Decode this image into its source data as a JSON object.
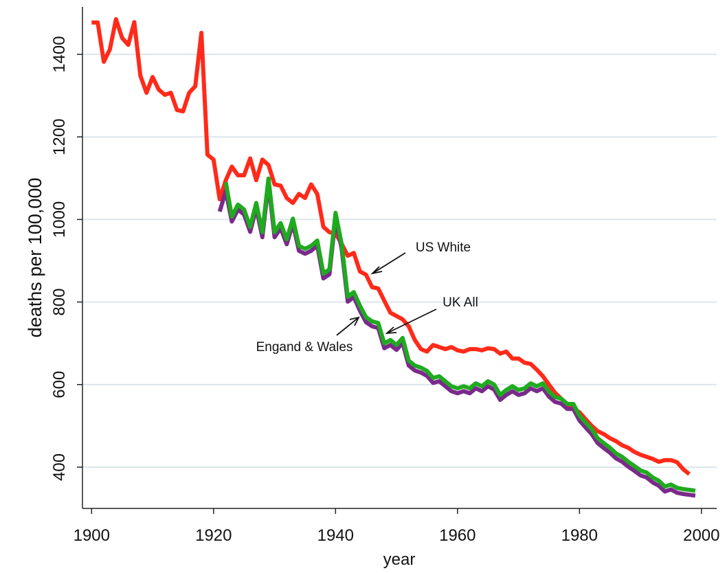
{
  "chart_data": {
    "type": "line",
    "x_label": "year",
    "y_label": "deaths per 100,000",
    "x": [
      1900,
      1901,
      1902,
      1903,
      1904,
      1905,
      1906,
      1907,
      1908,
      1909,
      1910,
      1911,
      1912,
      1913,
      1914,
      1915,
      1916,
      1917,
      1918,
      1919,
      1920,
      1921,
      1922,
      1923,
      1924,
      1925,
      1926,
      1927,
      1928,
      1929,
      1930,
      1931,
      1932,
      1933,
      1934,
      1935,
      1936,
      1937,
      1938,
      1939,
      1940,
      1941,
      1942,
      1943,
      1944,
      1945,
      1946,
      1947,
      1948,
      1949,
      1950,
      1951,
      1952,
      1953,
      1954,
      1955,
      1956,
      1957,
      1958,
      1959,
      1960,
      1961,
      1962,
      1963,
      1964,
      1965,
      1966,
      1967,
      1968,
      1969,
      1970,
      1971,
      1972,
      1973,
      1974,
      1975,
      1976,
      1977,
      1978,
      1979,
      1980,
      1981,
      1982,
      1983,
      1984,
      1985,
      1986,
      1987,
      1988,
      1989,
      1990,
      1991,
      1992,
      1993,
      1994,
      1995,
      1996,
      1997,
      1998,
      1999
    ],
    "series": [
      {
        "name": "US White",
        "color": "#ff2a1a",
        "values": [
          1477,
          1477,
          1382,
          1412,
          1485,
          1440,
          1423,
          1478,
          1348,
          1307,
          1345,
          1315,
          1302,
          1307,
          1265,
          1262,
          1307,
          1323,
          1452,
          1157,
          1145,
          1049,
          1095,
          1128,
          1107,
          1107,
          1148,
          1095,
          1145,
          1132,
          1085,
          1082,
          1052,
          1040,
          1062,
          1052,
          1085,
          1062,
          982,
          969,
          966,
          941,
          912,
          919,
          874,
          866,
          836,
          833,
          803,
          774,
          766,
          758,
          741,
          708,
          686,
          680,
          696,
          691,
          686,
          691,
          683,
          680,
          686,
          686,
          683,
          688,
          686,
          675,
          680,
          663,
          663,
          653,
          650,
          636,
          620,
          600,
          580,
          566,
          553,
          541,
          533,
          516,
          500,
          487,
          480,
          470,
          463,
          453,
          447,
          437,
          430,
          425,
          420,
          413,
          417,
          417,
          412,
          395,
          383,
          null
        ]
      },
      {
        "name": "Engand & Wales",
        "color": "#7a2a8a",
        "values": [
          null,
          null,
          null,
          null,
          null,
          null,
          null,
          null,
          null,
          null,
          null,
          null,
          null,
          null,
          null,
          null,
          null,
          null,
          null,
          null,
          null,
          1019,
          1069,
          995,
          1024,
          1012,
          970,
          1028,
          957,
          1087,
          957,
          979,
          940,
          990,
          924,
          917,
          924,
          937,
          857,
          867,
          1004,
          929,
          801,
          812,
          779,
          751,
          741,
          737,
          688,
          696,
          684,
          701,
          646,
          634,
          629,
          621,
          604,
          608,
          596,
          584,
          579,
          584,
          579,
          591,
          584,
          596,
          588,
          563,
          575,
          584,
          575,
          579,
          591,
          584,
          591,
          571,
          558,
          554,
          541,
          541,
          513,
          496,
          480,
          458,
          446,
          435,
          421,
          413,
          401,
          391,
          380,
          375,
          363,
          355,
          341,
          346,
          338,
          335,
          333,
          331
        ]
      },
      {
        "name": "UK All",
        "color": "#1faa1f",
        "values": [
          null,
          null,
          null,
          null,
          null,
          null,
          null,
          null,
          null,
          null,
          null,
          null,
          null,
          null,
          null,
          null,
          null,
          null,
          null,
          null,
          null,
          null,
          1090,
          1007,
          1036,
          1024,
          982,
          1040,
          969,
          1099,
          969,
          991,
          952,
          1002,
          936,
          929,
          936,
          949,
          869,
          879,
          1016,
          941,
          813,
          824,
          791,
          763,
          753,
          749,
          700,
          708,
          696,
          713,
          658,
          646,
          641,
          633,
          616,
          620,
          608,
          596,
          591,
          596,
          591,
          603,
          596,
          608,
          600,
          575,
          587,
          596,
          587,
          591,
          603,
          596,
          603,
          583,
          570,
          566,
          553,
          553,
          525,
          508,
          492,
          470,
          458,
          447,
          433,
          425,
          413,
          403,
          392,
          387,
          375,
          367,
          353,
          358,
          350,
          347,
          345,
          343
        ]
      }
    ],
    "xlim": [
      1898.5,
      2002.5
    ],
    "ylim": [
      300,
      1515
    ],
    "xticks": [
      1900,
      1920,
      1940,
      1960,
      1980,
      2000
    ],
    "yticks": [
      400,
      600,
      800,
      1000,
      1200,
      1400
    ],
    "grid": true
  }
}
